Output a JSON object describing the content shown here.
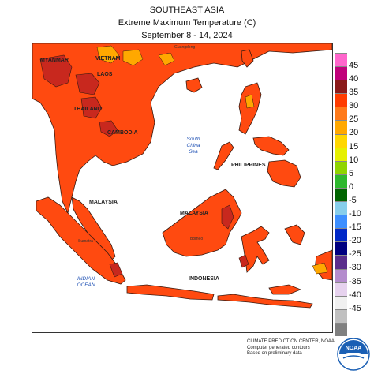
{
  "title": {
    "region": "SOUTHEAST ASIA",
    "product": "Extreme Maximum Temperature (C)",
    "period": "September 8 - 14, 2024"
  },
  "map": {
    "country_labels": {
      "myanmar": "MYANMAR",
      "vietnam": "VIETNAM",
      "laos": "LAOS",
      "thailand": "THAILAND",
      "cambodia": "CAMBODIA",
      "philippines": "PHILIPPINES",
      "malaysia_west": "MALAYSIA",
      "malaysia_east": "MALAYSIA",
      "indonesia": "INDONESIA"
    },
    "sea_labels": {
      "south_china_sea": "South China Sea",
      "indian_ocean": "INDIAN OCEAN"
    },
    "place_labels": {
      "guangdong": "Guangdong",
      "sumatra": "Sumatra",
      "borneo": "Borneo"
    },
    "colors": {
      "land_base": "#ff4a10",
      "band_35_40": "#c8281e",
      "band_30_35": "#ff8020",
      "band_25_30": "#ffa800",
      "coastline": "#3a1a10"
    }
  },
  "legend": {
    "items": [
      {
        "label": "45",
        "color": "#ff66cc"
      },
      {
        "label": "40",
        "color": "#c0007a"
      },
      {
        "label": "35",
        "color": "#8b1a1a"
      },
      {
        "label": "30",
        "color": "#ff3c00"
      },
      {
        "label": "25",
        "color": "#ff7a1a"
      },
      {
        "label": "20",
        "color": "#ffa800"
      },
      {
        "label": "15",
        "color": "#ffd700"
      },
      {
        "label": "10",
        "color": "#e6f000"
      },
      {
        "label": "5",
        "color": "#8fd400"
      },
      {
        "label": "0",
        "color": "#2eb82e"
      },
      {
        "label": "-5",
        "color": "#006400"
      },
      {
        "label": "-10",
        "color": "#87ceeb"
      },
      {
        "label": "-15",
        "color": "#3d8fff"
      },
      {
        "label": "-20",
        "color": "#0028c8"
      },
      {
        "label": "-25",
        "color": "#000080"
      },
      {
        "label": "-30",
        "color": "#5a2e8c"
      },
      {
        "label": "-35",
        "color": "#b48ccd"
      },
      {
        "label": "-40",
        "color": "#e6d2ee"
      },
      {
        "label": "-45",
        "color": "#f0f0f0"
      },
      {
        "label": "",
        "color": "#c0c0c0"
      },
      {
        "label": "",
        "color": "#808080"
      }
    ]
  },
  "credit": {
    "line1": "CLIMATE PREDICTION CENTER, NOAA",
    "line2": "Computer generated contours",
    "line3": "Based on preliminary data"
  },
  "logo": {
    "text": "NOAA",
    "color": "#1a5fb4"
  }
}
